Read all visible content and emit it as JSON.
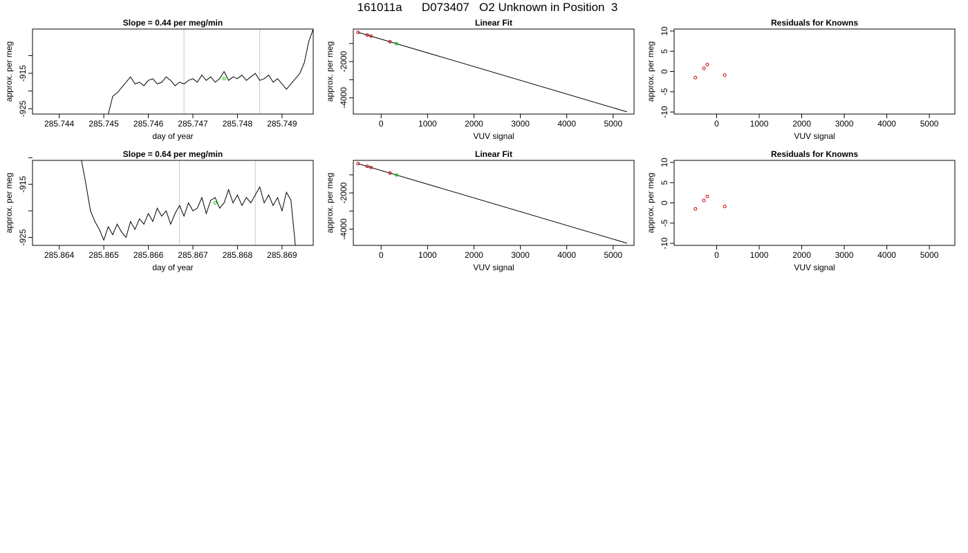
{
  "page": {
    "title": "161011a      D073407   O2 Unknown in Position  3"
  },
  "chart_data": [
    {
      "type": "line",
      "title": "Slope =  0.44  per meg/min",
      "xlabel": "day of year",
      "ylabel": "approx. per meg",
      "xlim": [
        285.7434,
        285.7497
      ],
      "ylim": [
        -926.5,
        -902.5
      ],
      "x_ticks": [
        285.744,
        285.745,
        285.746,
        285.747,
        285.748,
        285.749
      ],
      "x_tick_labels": [
        "285.744",
        "285.745",
        "285.746",
        "285.747",
        "285.748",
        "285.749"
      ],
      "y_ticks": [
        -910,
        -915,
        -920,
        -925
      ],
      "y_tick_labels": [
        "",
        "-915",
        "",
        "-925"
      ],
      "vlines": [
        285.7468,
        285.7485
      ],
      "series": [
        {
          "color": "#000000",
          "x": [
            285.7451,
            285.7452,
            285.7453,
            285.7454,
            285.7455,
            285.7456,
            285.7457,
            285.7458,
            285.7459,
            285.746,
            285.7461,
            285.7462,
            285.7463,
            285.7464,
            285.7465,
            285.7466,
            285.7467,
            285.7468,
            285.7469,
            285.747,
            285.7471,
            285.7472,
            285.7473,
            285.7474,
            285.7475,
            285.7476,
            285.7477,
            285.7478,
            285.7479,
            285.748,
            285.7481,
            285.7482,
            285.7483,
            285.7484,
            285.7485,
            285.7486,
            285.7487,
            285.7488,
            285.7489,
            285.749,
            285.7491,
            285.7492,
            285.7493,
            285.7494,
            285.7495,
            285.7496,
            285.7497
          ],
          "y": [
            -926.5,
            -921.5,
            -920.5,
            -919.0,
            -917.5,
            -916.0,
            -918.0,
            -917.5,
            -918.5,
            -917.0,
            -916.5,
            -918.0,
            -917.5,
            -916.0,
            -917.0,
            -918.5,
            -917.5,
            -918.0,
            -917.0,
            -916.5,
            -917.5,
            -915.5,
            -917.0,
            -916.0,
            -917.5,
            -916.5,
            -914.5,
            -917.0,
            -916.0,
            -916.5,
            -915.5,
            -917.0,
            -916.0,
            -915.0,
            -917.0,
            -916.5,
            -915.5,
            -917.5,
            -916.5,
            -918.0,
            -919.5,
            -918.0,
            -916.5,
            -915.0,
            -912.0,
            -906.0,
            -902.5
          ]
        }
      ],
      "marker": {
        "x": 285.7477,
        "y": -916.5,
        "color": "#00cc00"
      }
    },
    {
      "type": "scatter",
      "title": "Linear Fit",
      "xlabel": "VUV signal",
      "ylabel": "approx. per meg",
      "xlim": [
        -600,
        5450
      ],
      "ylim": [
        -4900,
        -200
      ],
      "x_ticks": [
        0,
        1000,
        2000,
        3000,
        4000,
        5000
      ],
      "x_tick_labels": [
        "0",
        "1000",
        "2000",
        "3000",
        "4000",
        "5000"
      ],
      "y_ticks": [
        -1000,
        -2000,
        -3000,
        -4000
      ],
      "y_tick_labels": [
        "",
        "-2000",
        "",
        "-4000"
      ],
      "fit_line": {
        "x": [
          -500,
          5300
        ],
        "y": [
          -380,
          -4780
        ]
      },
      "knowns": {
        "x": [
          -500,
          -300,
          -220,
          190
        ],
        "y": [
          -380,
          -530,
          -590,
          -900
        ],
        "color": "#cc0000"
      },
      "unknown": {
        "x": 330,
        "y": -1010,
        "color": "#00cc00"
      }
    },
    {
      "type": "scatter",
      "title": "Residuals for Knowns",
      "xlabel": "VUV signal",
      "ylabel": "approx. per meg",
      "xlim": [
        -1000,
        5600
      ],
      "ylim": [
        -10.5,
        10.5
      ],
      "x_ticks": [
        0,
        1000,
        2000,
        3000,
        4000,
        5000
      ],
      "x_tick_labels": [
        "0",
        "1000",
        "2000",
        "3000",
        "4000",
        "5000"
      ],
      "y_ticks": [
        10,
        5,
        0,
        -5,
        -10
      ],
      "y_tick_labels": [
        "10",
        "5",
        "0",
        "-5",
        "-10"
      ],
      "points": {
        "x": [
          -500,
          -300,
          -220,
          190
        ],
        "y": [
          -1.5,
          0.8,
          1.7,
          -0.9
        ],
        "color": "#cc0000"
      }
    },
    {
      "type": "line",
      "title": "Slope =  0.64  per meg/min",
      "xlabel": "day of year",
      "ylabel": "approx. per meg",
      "xlim": [
        285.8634,
        285.8697
      ],
      "ylim": [
        -926.5,
        -910.5
      ],
      "x_ticks": [
        285.864,
        285.865,
        285.866,
        285.867,
        285.868,
        285.869
      ],
      "x_tick_labels": [
        "285.864",
        "285.865",
        "285.866",
        "285.867",
        "285.868",
        "285.869"
      ],
      "y_ticks": [
        -910,
        -915,
        -920,
        -925
      ],
      "y_tick_labels": [
        "",
        "-915",
        "",
        "-925"
      ],
      "vlines": [
        285.8667,
        285.8684
      ],
      "series": [
        {
          "color": "#000000",
          "x": [
            285.8645,
            285.8646,
            285.8647,
            285.8648,
            285.8649,
            285.865,
            285.8651,
            285.8652,
            285.8653,
            285.8654,
            285.8655,
            285.8656,
            285.8657,
            285.8658,
            285.8659,
            285.866,
            285.8661,
            285.8662,
            285.8663,
            285.8664,
            285.8665,
            285.8666,
            285.8667,
            285.8668,
            285.8669,
            285.867,
            285.8671,
            285.8672,
            285.8673,
            285.8674,
            285.8675,
            285.8676,
            285.8677,
            285.8678,
            285.8679,
            285.868,
            285.8681,
            285.8682,
            285.8683,
            285.8684,
            285.8685,
            285.8686,
            285.8687,
            285.8688,
            285.8689,
            285.869,
            285.8691,
            285.8692,
            285.8693
          ],
          "y": [
            -910.5,
            -915.0,
            -920.0,
            -922.0,
            -923.5,
            -925.5,
            -923.0,
            -924.5,
            -922.5,
            -924.0,
            -925.0,
            -922.0,
            -923.5,
            -921.5,
            -922.5,
            -920.5,
            -922.0,
            -919.5,
            -921.0,
            -920.0,
            -922.5,
            -920.5,
            -919.0,
            -921.0,
            -918.5,
            -920.0,
            -919.5,
            -917.5,
            -920.5,
            -918.0,
            -917.5,
            -919.5,
            -918.5,
            -916.0,
            -918.5,
            -917.0,
            -919.0,
            -917.5,
            -918.5,
            -917.0,
            -915.5,
            -918.5,
            -917.0,
            -919.0,
            -917.5,
            -920.0,
            -916.5,
            -918.0,
            -926.5
          ]
        }
      ],
      "marker": {
        "x": 285.8675,
        "y": -918.5,
        "color": "#00cc00"
      }
    },
    {
      "type": "scatter",
      "title": "Linear Fit",
      "xlabel": "VUV signal",
      "ylabel": "approx. per meg",
      "xlim": [
        -600,
        5450
      ],
      "ylim": [
        -4900,
        -200
      ],
      "x_ticks": [
        0,
        1000,
        2000,
        3000,
        4000,
        5000
      ],
      "x_tick_labels": [
        "0",
        "1000",
        "2000",
        "3000",
        "4000",
        "5000"
      ],
      "y_ticks": [
        -1000,
        -2000,
        -3000,
        -4000
      ],
      "y_tick_labels": [
        "",
        "-2000",
        "",
        "-4000"
      ],
      "fit_line": {
        "x": [
          -500,
          5300
        ],
        "y": [
          -380,
          -4780
        ]
      },
      "knowns": {
        "x": [
          -500,
          -300,
          -220,
          190
        ],
        "y": [
          -380,
          -530,
          -590,
          -900
        ],
        "color": "#cc0000"
      },
      "unknown": {
        "x": 330,
        "y": -1010,
        "color": "#00cc00"
      }
    },
    {
      "type": "scatter",
      "title": "Residuals for Knowns",
      "xlabel": "VUV signal",
      "ylabel": "approx. per meg",
      "xlim": [
        -1000,
        5600
      ],
      "ylim": [
        -10.5,
        10.5
      ],
      "x_ticks": [
        0,
        1000,
        2000,
        3000,
        4000,
        5000
      ],
      "x_tick_labels": [
        "0",
        "1000",
        "2000",
        "3000",
        "4000",
        "5000"
      ],
      "y_ticks": [
        10,
        5,
        0,
        -5,
        -10
      ],
      "y_tick_labels": [
        "10",
        "5",
        "0",
        "-5",
        "-10"
      ],
      "points": {
        "x": [
          -500,
          -300,
          -220,
          190
        ],
        "y": [
          -1.5,
          0.6,
          1.6,
          -0.9
        ],
        "color": "#cc0000"
      }
    }
  ]
}
